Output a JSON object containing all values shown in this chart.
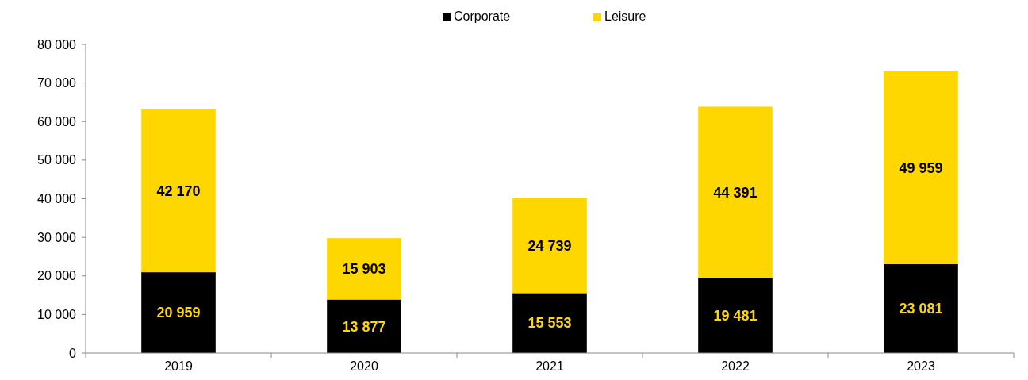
{
  "chart_data": {
    "type": "bar",
    "stacked": true,
    "categories": [
      "2019",
      "2020",
      "2021",
      "2022",
      "2023"
    ],
    "series": [
      {
        "name": "Corporate",
        "color": "#000000",
        "values": [
          20959,
          13877,
          15553,
          19481,
          23081
        ],
        "value_labels": [
          "20 959",
          "13 877",
          "15 553",
          "19 481",
          "23 081"
        ]
      },
      {
        "name": "Leisure",
        "color": "#ffd700",
        "values": [
          42170,
          15903,
          24739,
          44391,
          49959
        ],
        "value_labels": [
          "42 170",
          "15 903",
          "24 739",
          "44 391",
          "49 959"
        ]
      }
    ],
    "ylim": [
      0,
      80000
    ],
    "yticks": [
      0,
      {
        "value": 10000,
        "label": "10 000"
      },
      {
        "value": 20000,
        "label": "20 000"
      },
      {
        "value": 30000,
        "label": "30 000"
      },
      {
        "value": 40000,
        "label": "40 000"
      },
      {
        "value": 50000,
        "label": "50 000"
      },
      {
        "value": 60000,
        "label": "60 000"
      },
      {
        "value": 70000,
        "label": "70 000"
      },
      {
        "value": 80000,
        "label": "80 000"
      }
    ],
    "legend": "top",
    "grid": false
  }
}
